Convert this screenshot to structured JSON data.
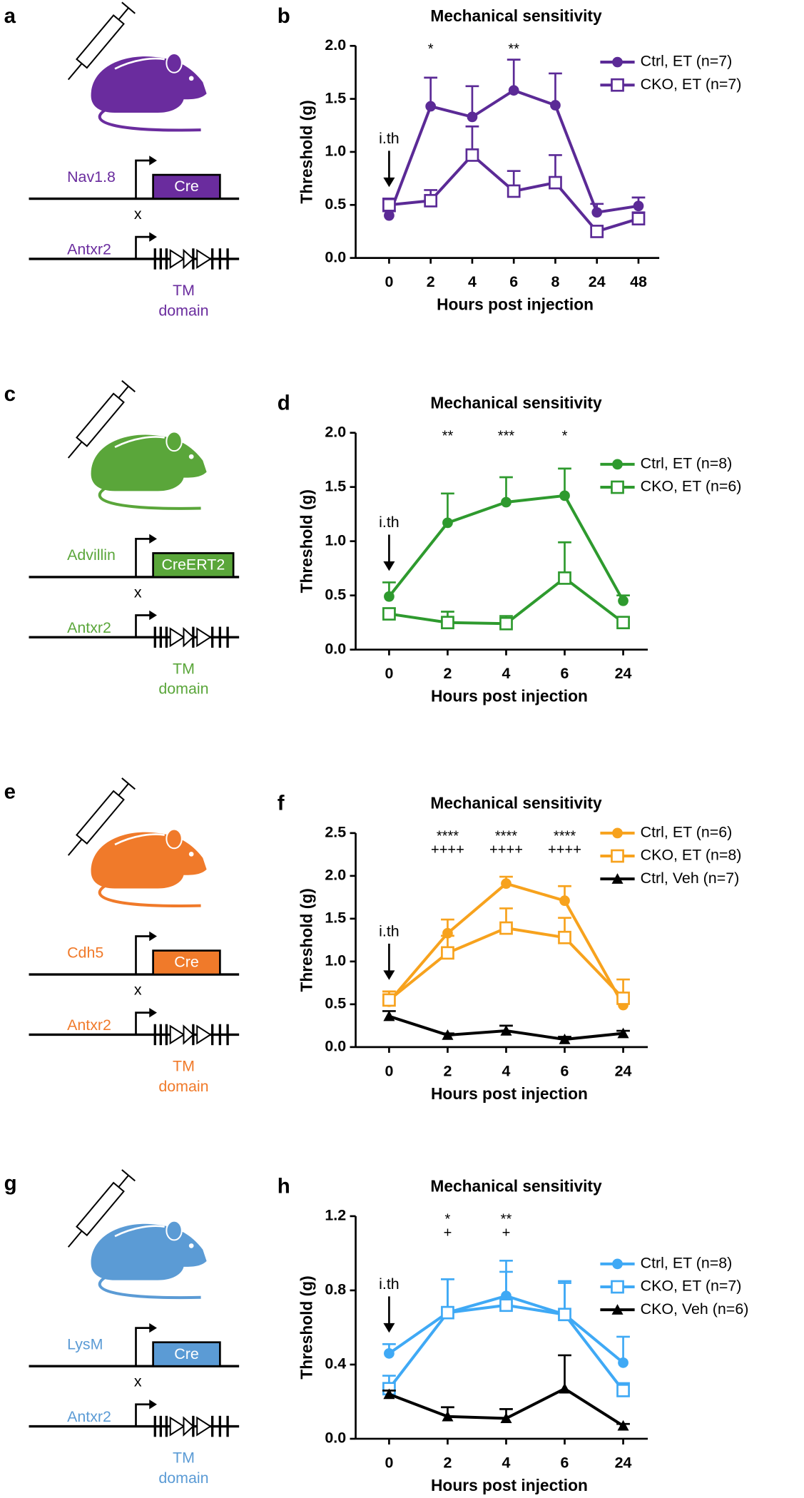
{
  "diagrams": [
    {
      "letter": "a",
      "color": "#6a2c9e",
      "driver": "Nav1.8",
      "box": "Cre",
      "cross": "x",
      "target": "Antxr2",
      "tm": "TM",
      "domain": "domain"
    },
    {
      "letter": "c",
      "color": "#5aa63a",
      "driver": "Advillin",
      "box": "CreERT2",
      "cross": "x",
      "target": "Antxr2",
      "tm": "TM",
      "domain": "domain"
    },
    {
      "letter": "e",
      "color": "#f07a2a",
      "driver": "Cdh5",
      "box": "Cre",
      "cross": "x",
      "target": "Antxr2",
      "tm": "TM",
      "domain": "domain"
    },
    {
      "letter": "g",
      "color": "#5b9bd5",
      "driver": "LysM",
      "box": "Cre",
      "cross": "x",
      "target": "Antxr2",
      "tm": "TM",
      "domain": "domain"
    }
  ],
  "chart_data": [
    {
      "type": "line",
      "panel": "b",
      "title": "Mechanical sensitivity",
      "xlabel": "Hours post injection",
      "ylabel": "Threshold (g)",
      "arrow_label": "i.th",
      "categories": [
        "0",
        "2",
        "4",
        "6",
        "8",
        "24",
        "48"
      ],
      "ylim": [
        0,
        2
      ],
      "yticks": [
        {
          "value": 0,
          "label": "0.0"
        },
        {
          "value": 0.5,
          "label": "0.5"
        },
        {
          "value": 1,
          "label": "1.0"
        },
        {
          "value": 1.5,
          "label": "1.5"
        },
        {
          "value": 2,
          "label": "2.0"
        }
      ],
      "annotations": [
        {
          "category": "2",
          "lines": [
            "*"
          ]
        },
        {
          "category": "6",
          "lines": [
            "**"
          ]
        }
      ],
      "series": [
        {
          "name": "Ctrl, ET (n=7)",
          "color": "#5b2a96",
          "marker": "filled-circle",
          "values": [
            0.4,
            1.43,
            1.33,
            1.58,
            1.44,
            0.43,
            0.49
          ],
          "errors": [
            0.04,
            0.27,
            0.29,
            0.29,
            0.3,
            0.08,
            0.08
          ]
        },
        {
          "name": "CKO, ET (n=7)",
          "color": "#5b2a96",
          "marker": "open-square",
          "values": [
            0.5,
            0.54,
            0.97,
            0.63,
            0.71,
            0.25,
            0.37
          ],
          "errors": [
            0.06,
            0.1,
            0.27,
            0.19,
            0.26,
            0.04,
            0.06
          ]
        }
      ]
    },
    {
      "type": "line",
      "panel": "d",
      "title": "Mechanical sensitivity",
      "xlabel": "Hours post injection",
      "ylabel": "Threshold (g)",
      "arrow_label": "i.th",
      "categories": [
        "0",
        "2",
        "4",
        "6",
        "24"
      ],
      "ylim": [
        0,
        2
      ],
      "yticks": [
        {
          "value": 0,
          "label": "0.0"
        },
        {
          "value": 0.5,
          "label": "0.5"
        },
        {
          "value": 1,
          "label": "1.0"
        },
        {
          "value": 1.5,
          "label": "1.5"
        },
        {
          "value": 2,
          "label": "2.0"
        }
      ],
      "annotations": [
        {
          "category": "2",
          "lines": [
            "**"
          ]
        },
        {
          "category": "4",
          "lines": [
            "***"
          ]
        },
        {
          "category": "6",
          "lines": [
            "*"
          ]
        }
      ],
      "series": [
        {
          "name": "Ctrl, ET (n=8)",
          "color": "#2e9a2e",
          "marker": "filled-circle",
          "values": [
            0.49,
            1.17,
            1.36,
            1.42,
            0.45
          ],
          "errors": [
            0.13,
            0.27,
            0.23,
            0.25,
            0.05
          ]
        },
        {
          "name": "CKO, ET (n=6)",
          "color": "#2e9a2e",
          "marker": "open-square",
          "values": [
            0.33,
            0.25,
            0.24,
            0.66,
            0.25
          ],
          "errors": [
            0.05,
            0.1,
            0.07,
            0.33,
            0.05
          ]
        }
      ]
    },
    {
      "type": "line",
      "panel": "f",
      "title": "Mechanical sensitivity",
      "xlabel": "Hours post injection",
      "ylabel": "Threshold (g)",
      "arrow_label": "i.th",
      "categories": [
        "0",
        "2",
        "4",
        "6",
        "24"
      ],
      "ylim": [
        0,
        2.5
      ],
      "yticks": [
        {
          "value": 0,
          "label": "0.0"
        },
        {
          "value": 0.5,
          "label": "0.5"
        },
        {
          "value": 1,
          "label": "1.0"
        },
        {
          "value": 1.5,
          "label": "1.5"
        },
        {
          "value": 2,
          "label": "2.0"
        },
        {
          "value": 2.5,
          "label": "2.5"
        }
      ],
      "annotations": [
        {
          "category": "2",
          "lines": [
            "****",
            "++++"
          ]
        },
        {
          "category": "4",
          "lines": [
            "****",
            "++++"
          ]
        },
        {
          "category": "6",
          "lines": [
            "****",
            "++++"
          ]
        }
      ],
      "series": [
        {
          "name": "Ctrl, ET (n=6)",
          "color": "#f7a21d",
          "marker": "filled-circle",
          "values": [
            0.53,
            1.33,
            1.91,
            1.71,
            0.49
          ],
          "errors": [
            0.12,
            0.16,
            0.08,
            0.17,
            0.1
          ]
        },
        {
          "name": "CKO, ET (n=8)",
          "color": "#f7a21d",
          "marker": "open-square",
          "values": [
            0.55,
            1.1,
            1.39,
            1.28,
            0.57
          ],
          "errors": [
            0.1,
            0.2,
            0.23,
            0.23,
            0.22
          ]
        },
        {
          "name": "Ctrl, Veh (n=7)",
          "color": "#000000",
          "marker": "triangle",
          "values": [
            0.36,
            0.14,
            0.19,
            0.09,
            0.16
          ],
          "errors": [
            0.06,
            0.02,
            0.06,
            0.03,
            0.03
          ]
        }
      ]
    },
    {
      "type": "line",
      "panel": "h",
      "title": "Mechanical sensitivity",
      "xlabel": "Hours post injection",
      "ylabel": "Threshold (g)",
      "arrow_label": "i.th",
      "categories": [
        "0",
        "2",
        "4",
        "6",
        "24"
      ],
      "ylim": [
        0,
        1.2
      ],
      "yticks": [
        {
          "value": 0,
          "label": "0.0"
        },
        {
          "value": 0.4,
          "label": "0.4"
        },
        {
          "value": 0.8,
          "label": "0.8"
        },
        {
          "value": 1.2,
          "label": "1.2"
        }
      ],
      "annotations": [
        {
          "category": "2",
          "lines": [
            "*",
            "+"
          ]
        },
        {
          "category": "4",
          "lines": [
            "**",
            "+"
          ]
        }
      ],
      "series": [
        {
          "name": "Ctrl, ET (n=8)",
          "color": "#3fa9f5",
          "marker": "filled-circle",
          "values": [
            0.46,
            0.68,
            0.77,
            0.67,
            0.41
          ],
          "errors": [
            0.05,
            0.18,
            0.19,
            0.18,
            0.14
          ]
        },
        {
          "name": "CKO, ET (n=7)",
          "color": "#3fa9f5",
          "marker": "open-square",
          "values": [
            0.27,
            0.68,
            0.72,
            0.67,
            0.26
          ],
          "errors": [
            0.07,
            0.18,
            0.18,
            0.17,
            0.04
          ]
        },
        {
          "name": "CKO, Veh (n=6)",
          "color": "#000000",
          "marker": "triangle",
          "values": [
            0.24,
            0.12,
            0.11,
            0.27,
            0.07
          ],
          "errors": [
            0.02,
            0.05,
            0.05,
            0.18,
            0.01
          ]
        }
      ]
    }
  ]
}
